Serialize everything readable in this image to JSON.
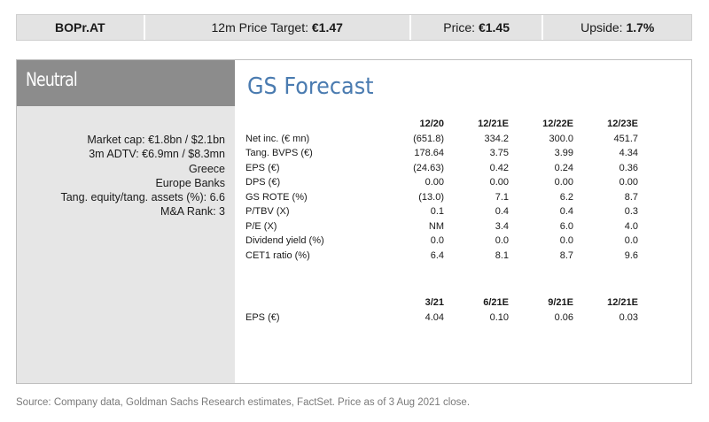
{
  "header": {
    "ticker": "BOPr.AT",
    "target_label": "12m Price Target: ",
    "target_value": "€1.47",
    "price_label": "Price: ",
    "price_value": "€1.45",
    "upside_label": "Upside: ",
    "upside_value": "1.7%"
  },
  "rating": "Neutral",
  "meta": [
    "Market cap: €1.8bn / $2.1bn",
    "3m ADTV: €6.9mn / $8.3mn",
    "Greece",
    "Europe Banks",
    "Tang. equity/tang. assets (%): 6.6",
    "M&A Rank: 3"
  ],
  "forecast": {
    "title": "GS Forecast",
    "annual_columns": [
      "12/20",
      "12/21E",
      "12/22E",
      "12/23E"
    ],
    "annual_rows": [
      {
        "label": "Net inc. (€ mn)",
        "values": [
          "(651.8)",
          "334.2",
          "300.0",
          "451.7"
        ]
      },
      {
        "label": "Tang. BVPS (€)",
        "values": [
          "178.64",
          "3.75",
          "3.99",
          "4.34"
        ]
      },
      {
        "label": "EPS (€)",
        "values": [
          "(24.63)",
          "0.42",
          "0.24",
          "0.36"
        ]
      },
      {
        "label": "DPS (€)",
        "values": [
          "0.00",
          "0.00",
          "0.00",
          "0.00"
        ]
      },
      {
        "label": "GS ROTE (%)",
        "values": [
          "(13.0)",
          "7.1",
          "6.2",
          "8.7"
        ]
      },
      {
        "label": "P/TBV (X)",
        "values": [
          "0.1",
          "0.4",
          "0.4",
          "0.3"
        ]
      },
      {
        "label": "P/E (X)",
        "values": [
          "NM",
          "3.4",
          "6.0",
          "4.0"
        ]
      },
      {
        "label": "Dividend yield (%)",
        "values": [
          "0.0",
          "0.0",
          "0.0",
          "0.0"
        ]
      },
      {
        "label": "CET1 ratio (%)",
        "values": [
          "6.4",
          "8.1",
          "8.7",
          "9.6"
        ]
      }
    ],
    "quarterly_columns": [
      "3/21",
      "6/21E",
      "9/21E",
      "12/21E"
    ],
    "quarterly_rows": [
      {
        "label": "EPS (€)",
        "values": [
          "4.04",
          "0.10",
          "0.06",
          "0.03"
        ]
      }
    ]
  },
  "source": "Source: Company data, Goldman Sachs Research estimates, FactSet. Price as of 3 Aug 2021 close."
}
